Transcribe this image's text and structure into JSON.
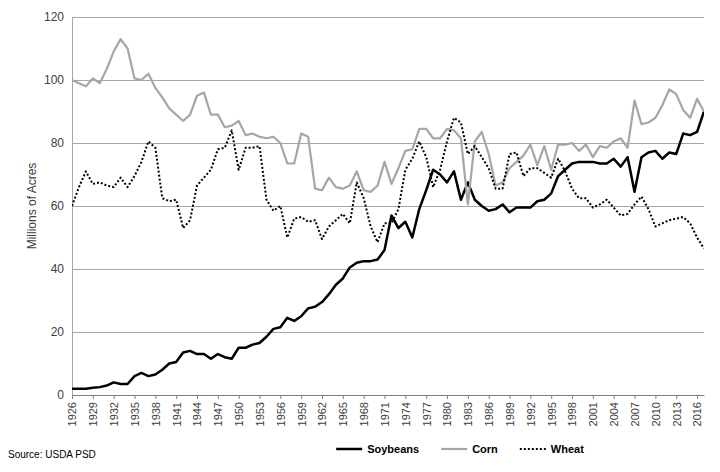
{
  "chart_data": {
    "type": "line",
    "y_label": "Millions of Acres",
    "source": "Source: USDA PSD",
    "x": [
      1926,
      1927,
      1928,
      1929,
      1930,
      1931,
      1932,
      1933,
      1934,
      1935,
      1936,
      1937,
      1938,
      1939,
      1940,
      1941,
      1942,
      1943,
      1944,
      1945,
      1946,
      1947,
      1948,
      1949,
      1950,
      1951,
      1952,
      1953,
      1954,
      1955,
      1956,
      1957,
      1958,
      1959,
      1960,
      1961,
      1962,
      1963,
      1964,
      1965,
      1966,
      1967,
      1968,
      1969,
      1970,
      1971,
      1972,
      1973,
      1974,
      1975,
      1976,
      1977,
      1978,
      1979,
      1980,
      1981,
      1982,
      1983,
      1984,
      1985,
      1986,
      1987,
      1988,
      1989,
      1990,
      1991,
      1992,
      1993,
      1994,
      1995,
      1996,
      1997,
      1998,
      1999,
      2000,
      2001,
      2002,
      2003,
      2004,
      2005,
      2006,
      2007,
      2008,
      2009,
      2010,
      2011,
      2012,
      2013,
      2014,
      2015,
      2016,
      2017
    ],
    "xlim": [
      1926,
      2017
    ],
    "xticks": [
      1926,
      1929,
      1932,
      1935,
      1938,
      1941,
      1944,
      1947,
      1950,
      1953,
      1956,
      1959,
      1962,
      1965,
      1968,
      1971,
      1974,
      1977,
      1980,
      1983,
      1986,
      1989,
      1992,
      1995,
      1998,
      2001,
      2004,
      2007,
      2010,
      2013,
      2016
    ],
    "ylim": [
      0,
      120
    ],
    "yticks": [
      0,
      20,
      40,
      60,
      80,
      100,
      120
    ],
    "grid": true,
    "legend": "bottom",
    "series": [
      {
        "name": "Soybeans",
        "color": "#000000",
        "line_style": "solid",
        "values": [
          2,
          2,
          2,
          2.3,
          2.5,
          3,
          4,
          3.5,
          3.5,
          6,
          7,
          6,
          6.5,
          8,
          10,
          10.5,
          13.5,
          14,
          13,
          13,
          11.5,
          13,
          12,
          11.5,
          15,
          15,
          16,
          16.5,
          18.5,
          21,
          21.5,
          24.5,
          23.5,
          25,
          27.5,
          28,
          29.5,
          32,
          35,
          37,
          40.5,
          42,
          42.5,
          42.5,
          43,
          46,
          57,
          53,
          55,
          50,
          59,
          65,
          71.5,
          70,
          67.5,
          71,
          62,
          67.5,
          62,
          60,
          58.5,
          59,
          60.5,
          58,
          59.5,
          59.5,
          59.5,
          61.5,
          62,
          64,
          69.5,
          71.5,
          73.5,
          74,
          74,
          74,
          73.5,
          73.5,
          75,
          72.5,
          75.5,
          64.5,
          75.5,
          77,
          77.5,
          75,
          77,
          76.5,
          83,
          82.5,
          83.5,
          90
        ]
      },
      {
        "name": "Corn",
        "color": "#a6a6a6",
        "line_style": "solid",
        "values": [
          100,
          99,
          98,
          100.5,
          99,
          103.5,
          109,
          113,
          110,
          100.5,
          100,
          102,
          97.5,
          94.5,
          91,
          89,
          87,
          89,
          95,
          96,
          89,
          89,
          85,
          85.5,
          87,
          82.5,
          83,
          82,
          81.5,
          82,
          80,
          73.5,
          73.5,
          83,
          82,
          65.5,
          65,
          69,
          66,
          65.5,
          66.5,
          71,
          65,
          64.5,
          66.5,
          74,
          67,
          72,
          77.5,
          78,
          84.5,
          84.5,
          81.5,
          81.5,
          84.5,
          84,
          81.5,
          60.5,
          80.5,
          83.5,
          76.5,
          66.5,
          67.5,
          72,
          74,
          76,
          79.5,
          73,
          79,
          71.5,
          79.5,
          79.5,
          80,
          77.5,
          79.5,
          75.5,
          79,
          78.5,
          80.5,
          81.5,
          78.5,
          93.5,
          86,
          86.5,
          88,
          92,
          97,
          95.5,
          90.5,
          88,
          94,
          90
        ]
      },
      {
        "name": "Wheat",
        "color": "#000000",
        "line_style": "dotted",
        "values": [
          60,
          66,
          71,
          67,
          67.5,
          66.5,
          66,
          69,
          66,
          69.5,
          74,
          80.5,
          78.5,
          62.5,
          61.5,
          62,
          53,
          55.5,
          66.5,
          69,
          71.5,
          78,
          78.5,
          84,
          71.5,
          78.5,
          78.5,
          79,
          62,
          58.5,
          60,
          50,
          56,
          56.5,
          55,
          55.5,
          49.5,
          53.5,
          55.5,
          57.5,
          54.5,
          67.5,
          62.5,
          53.5,
          48.5,
          54.5,
          54.5,
          59,
          71.5,
          75,
          80.5,
          75.5,
          66,
          71.5,
          80.5,
          88,
          86.5,
          76.5,
          79,
          75.5,
          72,
          65.5,
          65.5,
          76.5,
          77,
          69.5,
          72,
          72,
          70.5,
          69,
          75,
          71,
          65.5,
          62.5,
          62.5,
          59.5,
          60.5,
          62,
          59.5,
          57,
          57.5,
          60.5,
          63,
          59,
          53.5,
          54.5,
          55.5,
          56,
          56.5,
          54.5,
          50,
          46.5
        ]
      }
    ]
  }
}
